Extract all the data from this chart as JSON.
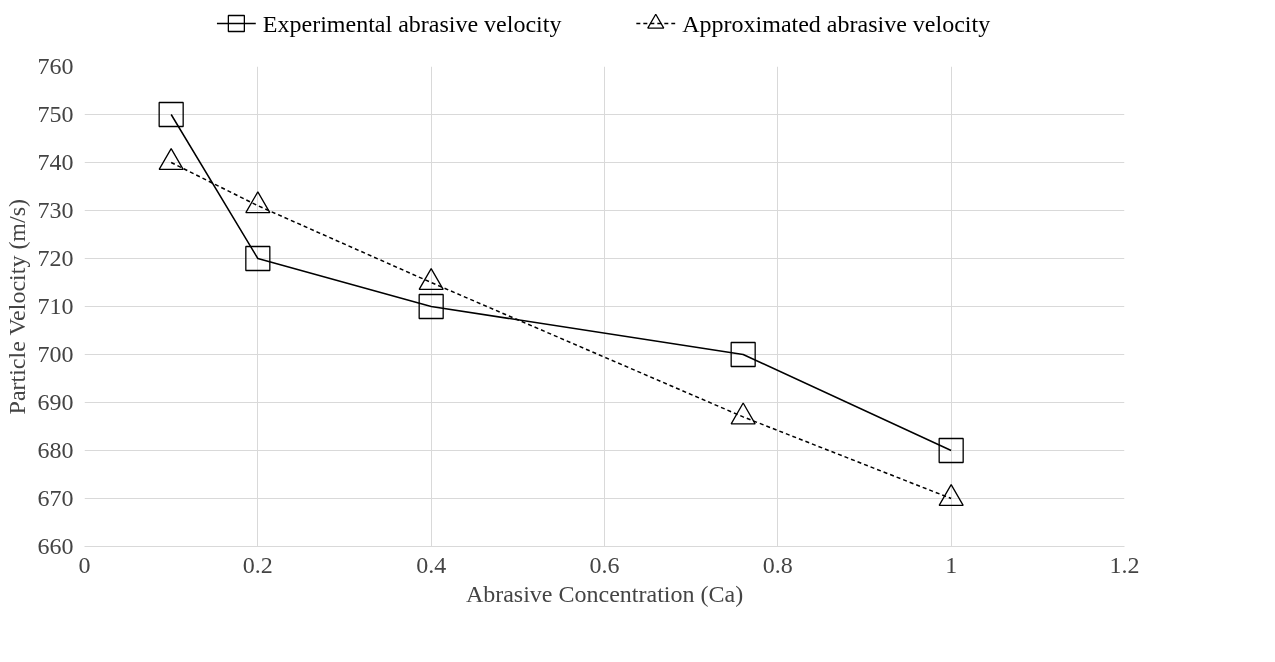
{
  "chart_data": {
    "type": "line",
    "xlabel": "Abrasive Concentration (Ca)",
    "ylabel": "Particle Velocity (m/s)",
    "x": [
      0.1,
      0.2,
      0.4,
      0.76,
      1
    ],
    "series": [
      {
        "name": "Experimental abrasive velocity",
        "color": "#000000",
        "values": [
          750,
          720,
          710,
          700,
          680
        ],
        "marker": "square",
        "line_style": "solid"
      },
      {
        "name": "Approximated abrasive velocity",
        "color": "#000000",
        "values": [
          740,
          731,
          715,
          687,
          670
        ],
        "marker": "triangle",
        "line_style": "dashed"
      }
    ],
    "xlim": [
      0,
      1.2
    ],
    "xticks": [
      0,
      0.2,
      0.4,
      0.6,
      0.8,
      1,
      1.2
    ],
    "ylim": [
      660,
      760
    ],
    "yticks": [
      660,
      670,
      680,
      690,
      700,
      710,
      720,
      730,
      740,
      750,
      760
    ],
    "grid": true,
    "legend": "top"
  }
}
